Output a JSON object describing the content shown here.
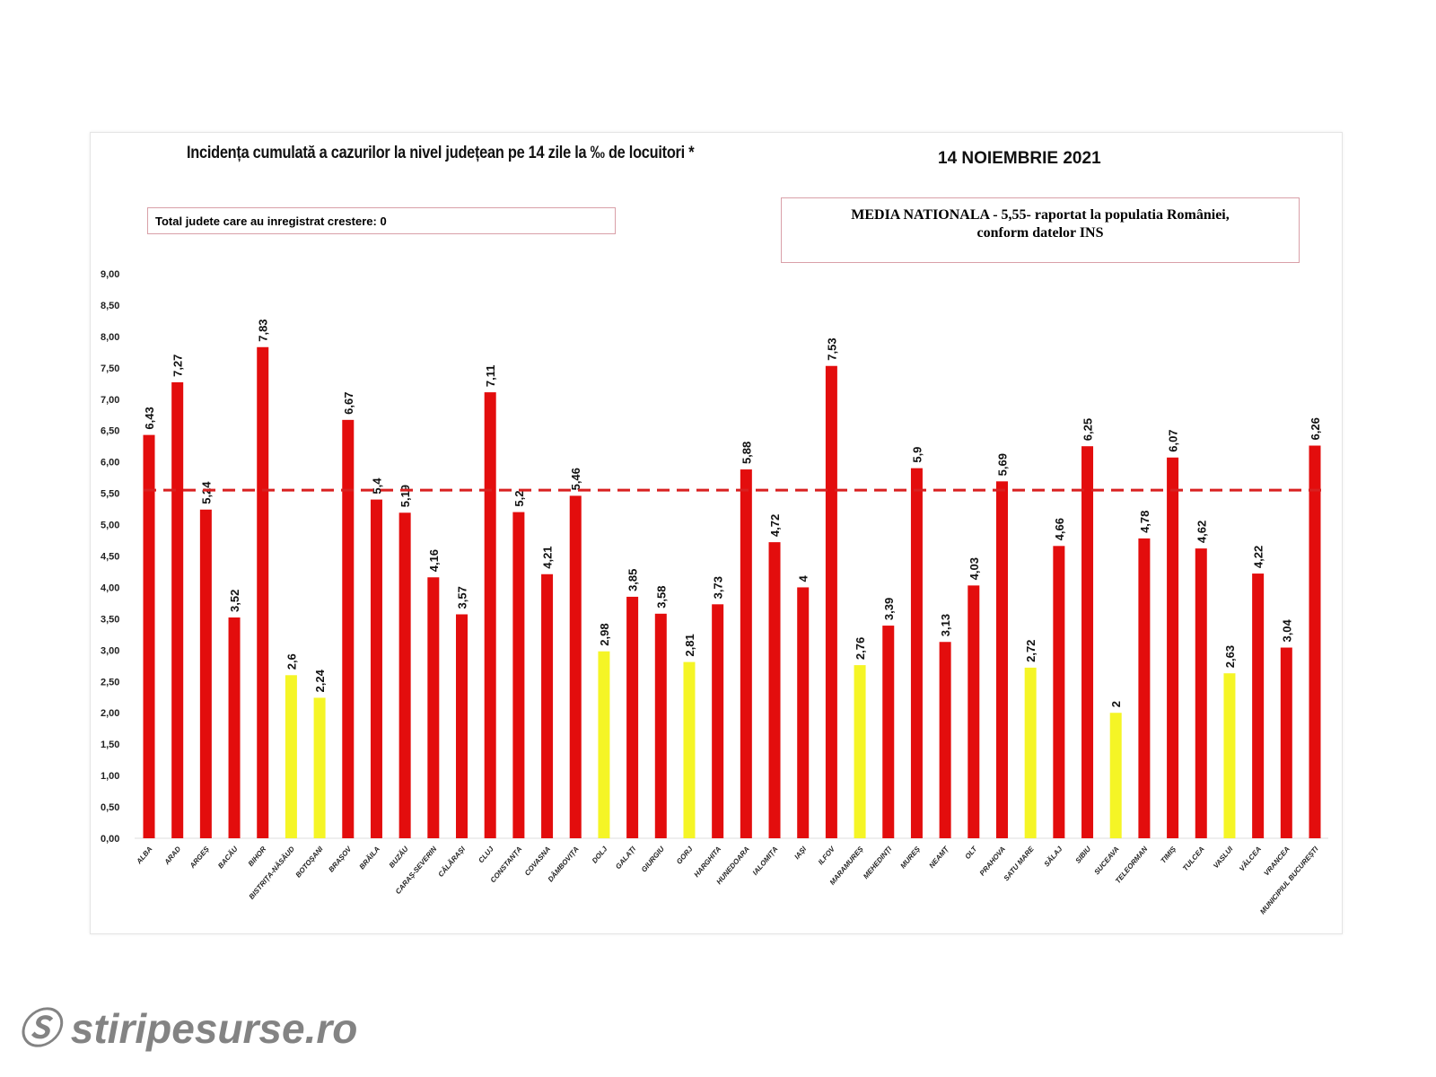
{
  "watermark": "stiripesurse.ro",
  "chart_data": {
    "type": "bar",
    "title": "Incidența cumulată a cazurilor la nivel județean pe 14 zile la ‰ de locuitori *",
    "date": "14 NOIEMBRIE 2021",
    "note_box": "Total judete care au inregistrat crestere: 0",
    "national_box_line1": "MEDIA NATIONALA - 5,55-  raportat la populatia României,",
    "national_box_line2": "conform datelor INS",
    "national_average": 5.55,
    "ylim": [
      0,
      9
    ],
    "yticks": [
      "0,00",
      "0,50",
      "1,00",
      "1,50",
      "2,00",
      "2,50",
      "3,00",
      "3,50",
      "4,00",
      "4,50",
      "5,00",
      "5,50",
      "6,00",
      "6,50",
      "7,00",
      "7,50",
      "8,00",
      "8,50",
      "9,00"
    ],
    "categories": [
      "ALBA",
      "ARAD",
      "ARGEȘ",
      "BACĂU",
      "BIHOR",
      "BISTRIȚA-NĂSĂUD",
      "BOTOȘANI",
      "BRAȘOV",
      "BRĂILA",
      "BUZĂU",
      "CARAȘ-SEVERIN",
      "CĂLĂRAȘI",
      "CLUJ",
      "CONSTANȚA",
      "COVASNA",
      "DÂMBOVIȚA",
      "DOLJ",
      "GALAȚI",
      "GIURGIU",
      "GORJ",
      "HARGHITA",
      "HUNEDOARA",
      "IALOMIȚA",
      "IAȘI",
      "ILFOV",
      "MARAMUREȘ",
      "MEHEDINȚI",
      "MUREȘ",
      "NEAMȚ",
      "OLT",
      "PRAHOVA",
      "SATU MARE",
      "SĂLAJ",
      "SIBIU",
      "SUCEAVA",
      "TELEORMAN",
      "TIMIȘ",
      "TULCEA",
      "VASLUI",
      "VÂLCEA",
      "VRANCEA",
      "MUNICIPIUL BUCUREȘTI"
    ],
    "values": [
      6.43,
      7.27,
      5.24,
      3.52,
      7.83,
      2.6,
      2.24,
      6.67,
      5.4,
      5.19,
      4.16,
      3.57,
      7.11,
      5.2,
      4.21,
      5.46,
      2.98,
      3.85,
      3.58,
      2.81,
      3.73,
      5.88,
      4.72,
      4,
      7.53,
      2.76,
      3.39,
      5.9,
      3.13,
      4.03,
      5.69,
      2.72,
      4.66,
      6.25,
      2,
      4.78,
      6.07,
      4.62,
      2.63,
      4.22,
      3.04,
      6.26
    ],
    "labels": [
      "6,43",
      "7,27",
      "5,24",
      "3,52",
      "7,83",
      "2,6",
      "2,24",
      "6,67",
      "5,4",
      "5,19",
      "4,16",
      "3,57",
      "7,11",
      "5,2",
      "4,21",
      "5,46",
      "2,98",
      "3,85",
      "3,58",
      "2,81",
      "3,73",
      "5,88",
      "4,72",
      "4",
      "7,53",
      "2,76",
      "3,39",
      "5,9",
      "3,13",
      "4,03",
      "5,69",
      "2,72",
      "4,66",
      "6,25",
      "2",
      "4,78",
      "6,07",
      "4,62",
      "2,63",
      "4,22",
      "3,04",
      "6,26"
    ],
    "colors": {
      "high": "#e30d0d",
      "low": "#f5f526",
      "average_line": "#d92020"
    },
    "low_threshold": 3
  }
}
